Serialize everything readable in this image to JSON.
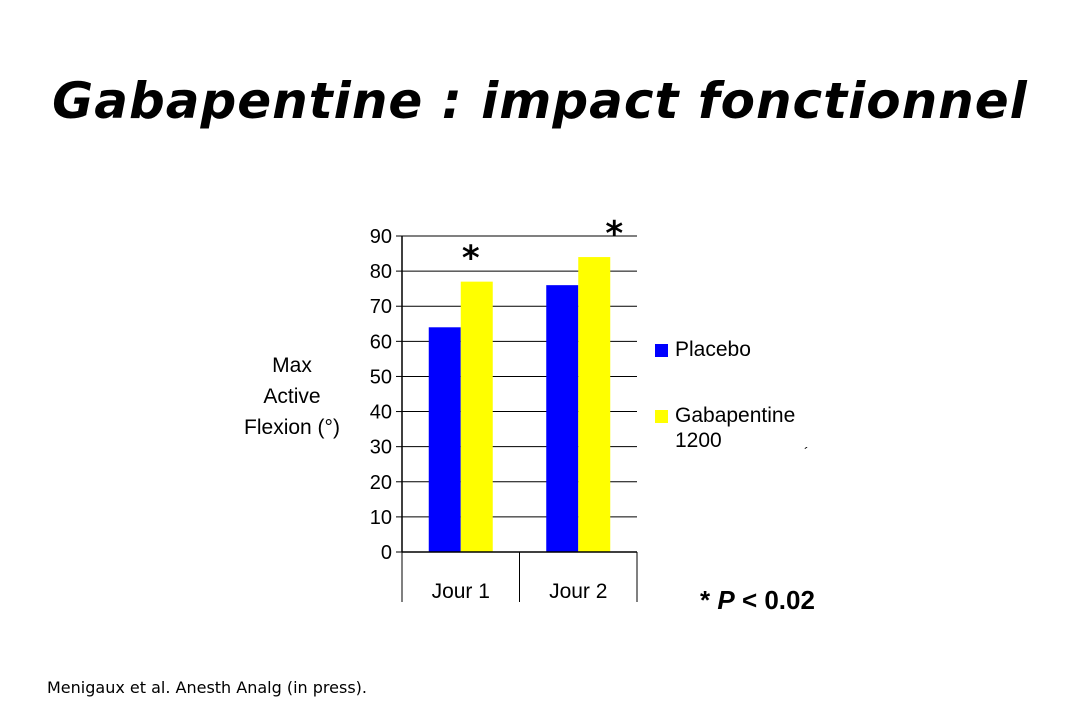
{
  "slide": {
    "title": "Gabapentine : impact fonctionnel",
    "citation": "Menigaux et al. Anesth Analg (in press).",
    "significance_note": {
      "marker": "*",
      "p_symbol": "P",
      "comparison": "< 0.02"
    },
    "stray_mark": "´"
  },
  "chart_data": {
    "type": "bar",
    "categories": [
      "Jour 1",
      "Jour 2"
    ],
    "series": [
      {
        "name": "Placebo",
        "values": [
          64,
          76
        ],
        "color": "#0000ff"
      },
      {
        "name": "Gabapentine 1200",
        "name_lines": [
          "Gabapentine",
          "1200"
        ],
        "values": [
          77,
          84
        ],
        "color": "#ffff00"
      }
    ],
    "ylabel_lines": [
      "Max",
      "Active",
      "Flexion (°)"
    ],
    "ylim": [
      0,
      90
    ],
    "yticks": [
      "0",
      "10",
      "20",
      "30",
      "40",
      "50",
      "60",
      "70",
      "80",
      "90"
    ],
    "grid": true,
    "legend_position": "right",
    "significance_markers": [
      {
        "category": "Jour 1",
        "series": "Gabapentine 1200",
        "text": "*"
      },
      {
        "category": "Jour 2",
        "series": "Gabapentine 1200",
        "text": "*"
      }
    ]
  }
}
